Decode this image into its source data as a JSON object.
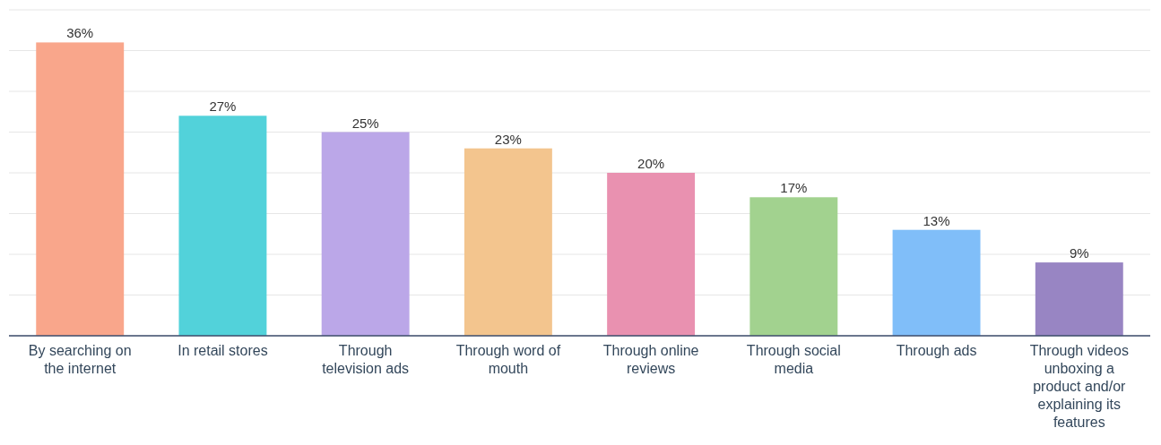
{
  "chart_data": {
    "type": "bar",
    "categories": [
      "By searching on the internet",
      "In retail stores",
      "Through television ads",
      "Through word of mouth",
      "Through online reviews",
      "Through social media",
      "Through ads",
      "Through videos unboxing a product and/or explaining its features"
    ],
    "values": [
      36,
      27,
      25,
      23,
      20,
      17,
      13,
      9
    ],
    "colors": [
      "#f9a68b",
      "#52d2da",
      "#bba7e8",
      "#f3c58e",
      "#e991b0",
      "#a2d28f",
      "#80bef9",
      "#9885c3"
    ],
    "value_labels": [
      "36%",
      "27%",
      "25%",
      "23%",
      "20%",
      "17%",
      "13%",
      "9%"
    ],
    "ylim": [
      0,
      40
    ],
    "yticks": [
      {
        "value": 0,
        "label": null
      },
      {
        "value": 5,
        "label": null
      },
      {
        "value": 10,
        "label": null
      },
      {
        "value": 15,
        "label": null
      },
      {
        "value": 20,
        "label": null
      },
      {
        "value": 25,
        "label": null
      },
      {
        "value": 30,
        "label": null
      },
      {
        "value": 35,
        "label": null
      },
      {
        "value": 40,
        "label": null
      }
    ],
    "grid": "y",
    "tick_labels": "x"
  }
}
